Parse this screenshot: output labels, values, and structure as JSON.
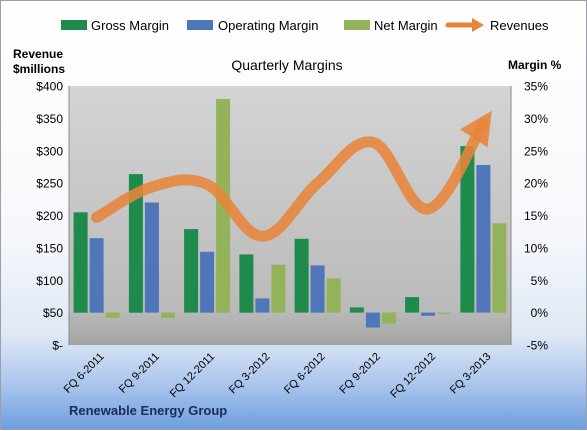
{
  "chart_data": {
    "type": "bar",
    "title": "Quarterly Margins",
    "company": "Renewable Energy Group",
    "y_left_label": [
      "Revenue",
      "$millions"
    ],
    "y_right_label": "Margin %",
    "y_left_range": [
      0,
      400
    ],
    "y_left_ticks": [
      "$-",
      "$50",
      "$100",
      "$150",
      "$200",
      "$250",
      "$300",
      "$350",
      "$400"
    ],
    "y_right_range": [
      -5,
      35
    ],
    "y_right_ticks": [
      "-5%",
      "0%",
      "5%",
      "10%",
      "15%",
      "20%",
      "25%",
      "30%",
      "35%"
    ],
    "categories": [
      "FQ 6-2011",
      "FQ 9-2011",
      "FQ 12-2011",
      "FQ 3-2012",
      "FQ 6-2012",
      "FQ 9-2012",
      "FQ 12-2012",
      "FQ 3-2013"
    ],
    "bar_series": [
      {
        "name": "Gross Margin",
        "color": "#1e8a4c",
        "values": [
          15.5,
          21.4,
          12.9,
          9.0,
          11.4,
          0.8,
          2.4,
          25.7
        ]
      },
      {
        "name": "Operating Margin",
        "color": "#4f76b8",
        "values": [
          11.5,
          17.0,
          9.4,
          2.2,
          7.3,
          -2.3,
          -0.5,
          22.8
        ]
      },
      {
        "name": "Net Margin",
        "color": "#93b35a",
        "values": [
          -0.8,
          -0.8,
          33.0,
          7.4,
          5.3,
          -1.7,
          -0.2,
          13.8
        ]
      }
    ],
    "line_series": {
      "name": "Revenues",
      "color": "#e8843a",
      "values": [
        197,
        244,
        248,
        168,
        250,
        313,
        210,
        342
      ]
    },
    "legend_position": "top",
    "grid": false
  }
}
